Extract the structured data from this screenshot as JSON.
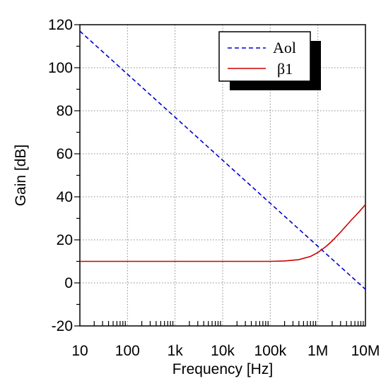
{
  "chart_data": {
    "type": "line",
    "xlabel": "Frequency [Hz]",
    "ylabel": "Gain [dB]",
    "x_scale": "log",
    "xlim": [
      10,
      10000000
    ],
    "ylim": [
      -20,
      120
    ],
    "grid": true,
    "x_ticks": [
      {
        "value": 10,
        "label": "10"
      },
      {
        "value": 100,
        "label": "100"
      },
      {
        "value": 1000,
        "label": "1k"
      },
      {
        "value": 10000,
        "label": "10k"
      },
      {
        "value": 100000,
        "label": "100k"
      },
      {
        "value": 1000000,
        "label": "1M"
      },
      {
        "value": 10000000,
        "label": "10M"
      }
    ],
    "y_ticks": [
      {
        "value": -20,
        "label": "-20"
      },
      {
        "value": 0,
        "label": "0"
      },
      {
        "value": 20,
        "label": "20"
      },
      {
        "value": 40,
        "label": "40"
      },
      {
        "value": 60,
        "label": "60"
      },
      {
        "value": 80,
        "label": "80"
      },
      {
        "value": 100,
        "label": "100"
      },
      {
        "value": 120,
        "label": "120"
      }
    ],
    "legend": {
      "position": "top-right"
    },
    "series": [
      {
        "name": "Aol",
        "color": "#0000cc",
        "style": "dashed",
        "x": [
          10,
          100,
          1000,
          10000,
          100000,
          1000000,
          10000000
        ],
        "y": [
          117,
          97,
          77,
          57,
          37,
          17,
          -3
        ]
      },
      {
        "name": "β1",
        "color": "#cc0000",
        "style": "solid",
        "x": [
          10,
          100,
          1000,
          10000,
          100000,
          200000,
          400000,
          700000,
          1000000,
          1500000,
          2000000,
          3000000,
          5000000,
          7000000,
          10000000
        ],
        "y": [
          10,
          10,
          10,
          10,
          10,
          10.2,
          10.8,
          12.3,
          14.1,
          17.0,
          19.5,
          23.6,
          29.1,
          32.5,
          36.4
        ]
      }
    ]
  }
}
